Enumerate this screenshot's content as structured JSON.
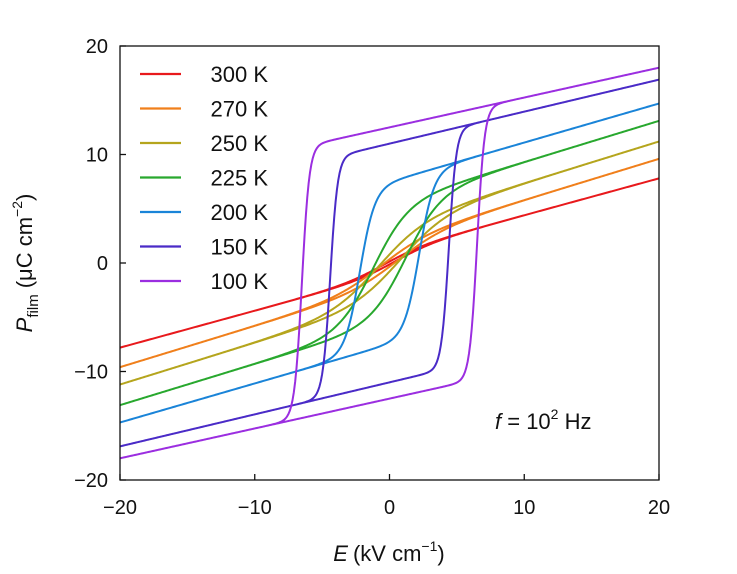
{
  "chart_data": {
    "type": "line",
    "title": "",
    "xlabel": {
      "symbol": "E",
      "unit": "(kV cm",
      "exp": "−1",
      "close": ")"
    },
    "ylabel": {
      "symbol": "P",
      "sub": "film",
      "unit": "(μC cm",
      "exp": "−2",
      "close": ")"
    },
    "xlim": [
      -20,
      20
    ],
    "ylim": [
      -20,
      20
    ],
    "xticks": [
      -20,
      -10,
      0,
      10,
      20
    ],
    "yticks": [
      -20,
      -10,
      0,
      10,
      20
    ],
    "xtick_labels": [
      "−20",
      "−10",
      "0",
      "10",
      "20"
    ],
    "ytick_labels": [
      "−20",
      "−10",
      "0",
      "10",
      "20"
    ],
    "legend_position": "top-left",
    "annotation": {
      "var": "f",
      "eq": " = 10",
      "exp": "2",
      "unit": " Hz"
    },
    "series": [
      {
        "name": "300 K",
        "color": "#e8191c",
        "ps": 1.0,
        "ec": 0.4,
        "w": 3.0,
        "sat": 4.0,
        "pmax": 7.8
      },
      {
        "name": "270 K",
        "color": "#f07f1b",
        "ps": 2.0,
        "ec": 0.6,
        "w": 3.5,
        "sat": 5.5,
        "pmax": 9.6
      },
      {
        "name": "250 K",
        "color": "#b5a51d",
        "ps": 3.5,
        "ec": 0.8,
        "w": 3.5,
        "sat": 6.2,
        "pmax": 11.2
      },
      {
        "name": "225 K",
        "color": "#28a82e",
        "ps": 5.5,
        "ec": 1.2,
        "w": 2.6,
        "sat": 6.2,
        "pmax": 13.1
      },
      {
        "name": "200 K",
        "color": "#1a84d8",
        "ps": 7.5,
        "ec": 2.2,
        "w": 1.1,
        "sat": 6.0,
        "pmax": 14.7
      },
      {
        "name": "150 K",
        "color": "#4a2bc7",
        "ps": 11.0,
        "ec": 4.4,
        "w": 0.55,
        "sat": 6.0,
        "pmax": 16.9
      },
      {
        "name": "100 K",
        "color": "#9b2ee0",
        "ps": 12.5,
        "ec": 6.5,
        "w": 0.55,
        "sat": 5.5,
        "pmax": 18.0
      }
    ]
  }
}
